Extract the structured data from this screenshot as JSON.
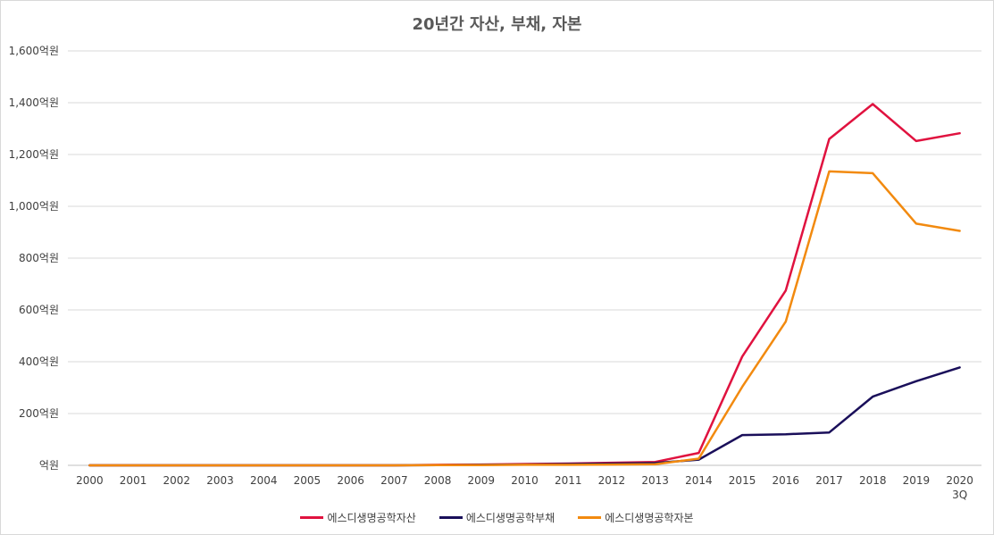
{
  "chart_data": {
    "type": "line",
    "title": "20년간 자산, 부채, 자본",
    "categories": [
      "2000",
      "2001",
      "2002",
      "2003",
      "2004",
      "2005",
      "2006",
      "2007",
      "2008",
      "2009",
      "2010",
      "2011",
      "2012",
      "2013",
      "2014",
      "2015",
      "2016",
      "2017",
      "2018",
      "2019",
      "2020"
    ],
    "category_sublabels": {
      "2020": "3Q"
    },
    "ylim": [
      0,
      1600
    ],
    "yticks": [
      {
        "value": 0,
        "label": "억원"
      },
      {
        "value": 200,
        "label": "200억원"
      },
      {
        "value": 400,
        "label": "400억원"
      },
      {
        "value": 600,
        "label": "600억원"
      },
      {
        "value": 800,
        "label": "800억원"
      },
      {
        "value": 1000,
        "label": "1,000억원"
      },
      {
        "value": 1200,
        "label": "1,200억원"
      },
      {
        "value": 1400,
        "label": "1,400억원"
      },
      {
        "value": 1600,
        "label": "1,600억원"
      }
    ],
    "grid": true,
    "legend_position": "bottom",
    "series": [
      {
        "name": "에스디생명공학자산",
        "color": "#e0123f",
        "values": [
          0,
          0,
          0,
          0,
          0,
          0,
          0,
          0,
          2,
          3,
          5,
          7,
          10,
          13,
          48,
          420,
          675,
          1260,
          1395,
          1252,
          1282
        ]
      },
      {
        "name": "에스디생명공학부채",
        "color": "#1a0f5a",
        "values": [
          0,
          0,
          0,
          0,
          0,
          0,
          0,
          0,
          1,
          2,
          3,
          5,
          7,
          9,
          22,
          117,
          120,
          127,
          265,
          325,
          378
        ]
      },
      {
        "name": "에스디생명공학자본",
        "color": "#f28a0f",
        "values": [
          0,
          0,
          0,
          0,
          0,
          0,
          0,
          0,
          1,
          1,
          2,
          2,
          3,
          4,
          26,
          303,
          555,
          1135,
          1128,
          933,
          905
        ]
      }
    ]
  }
}
